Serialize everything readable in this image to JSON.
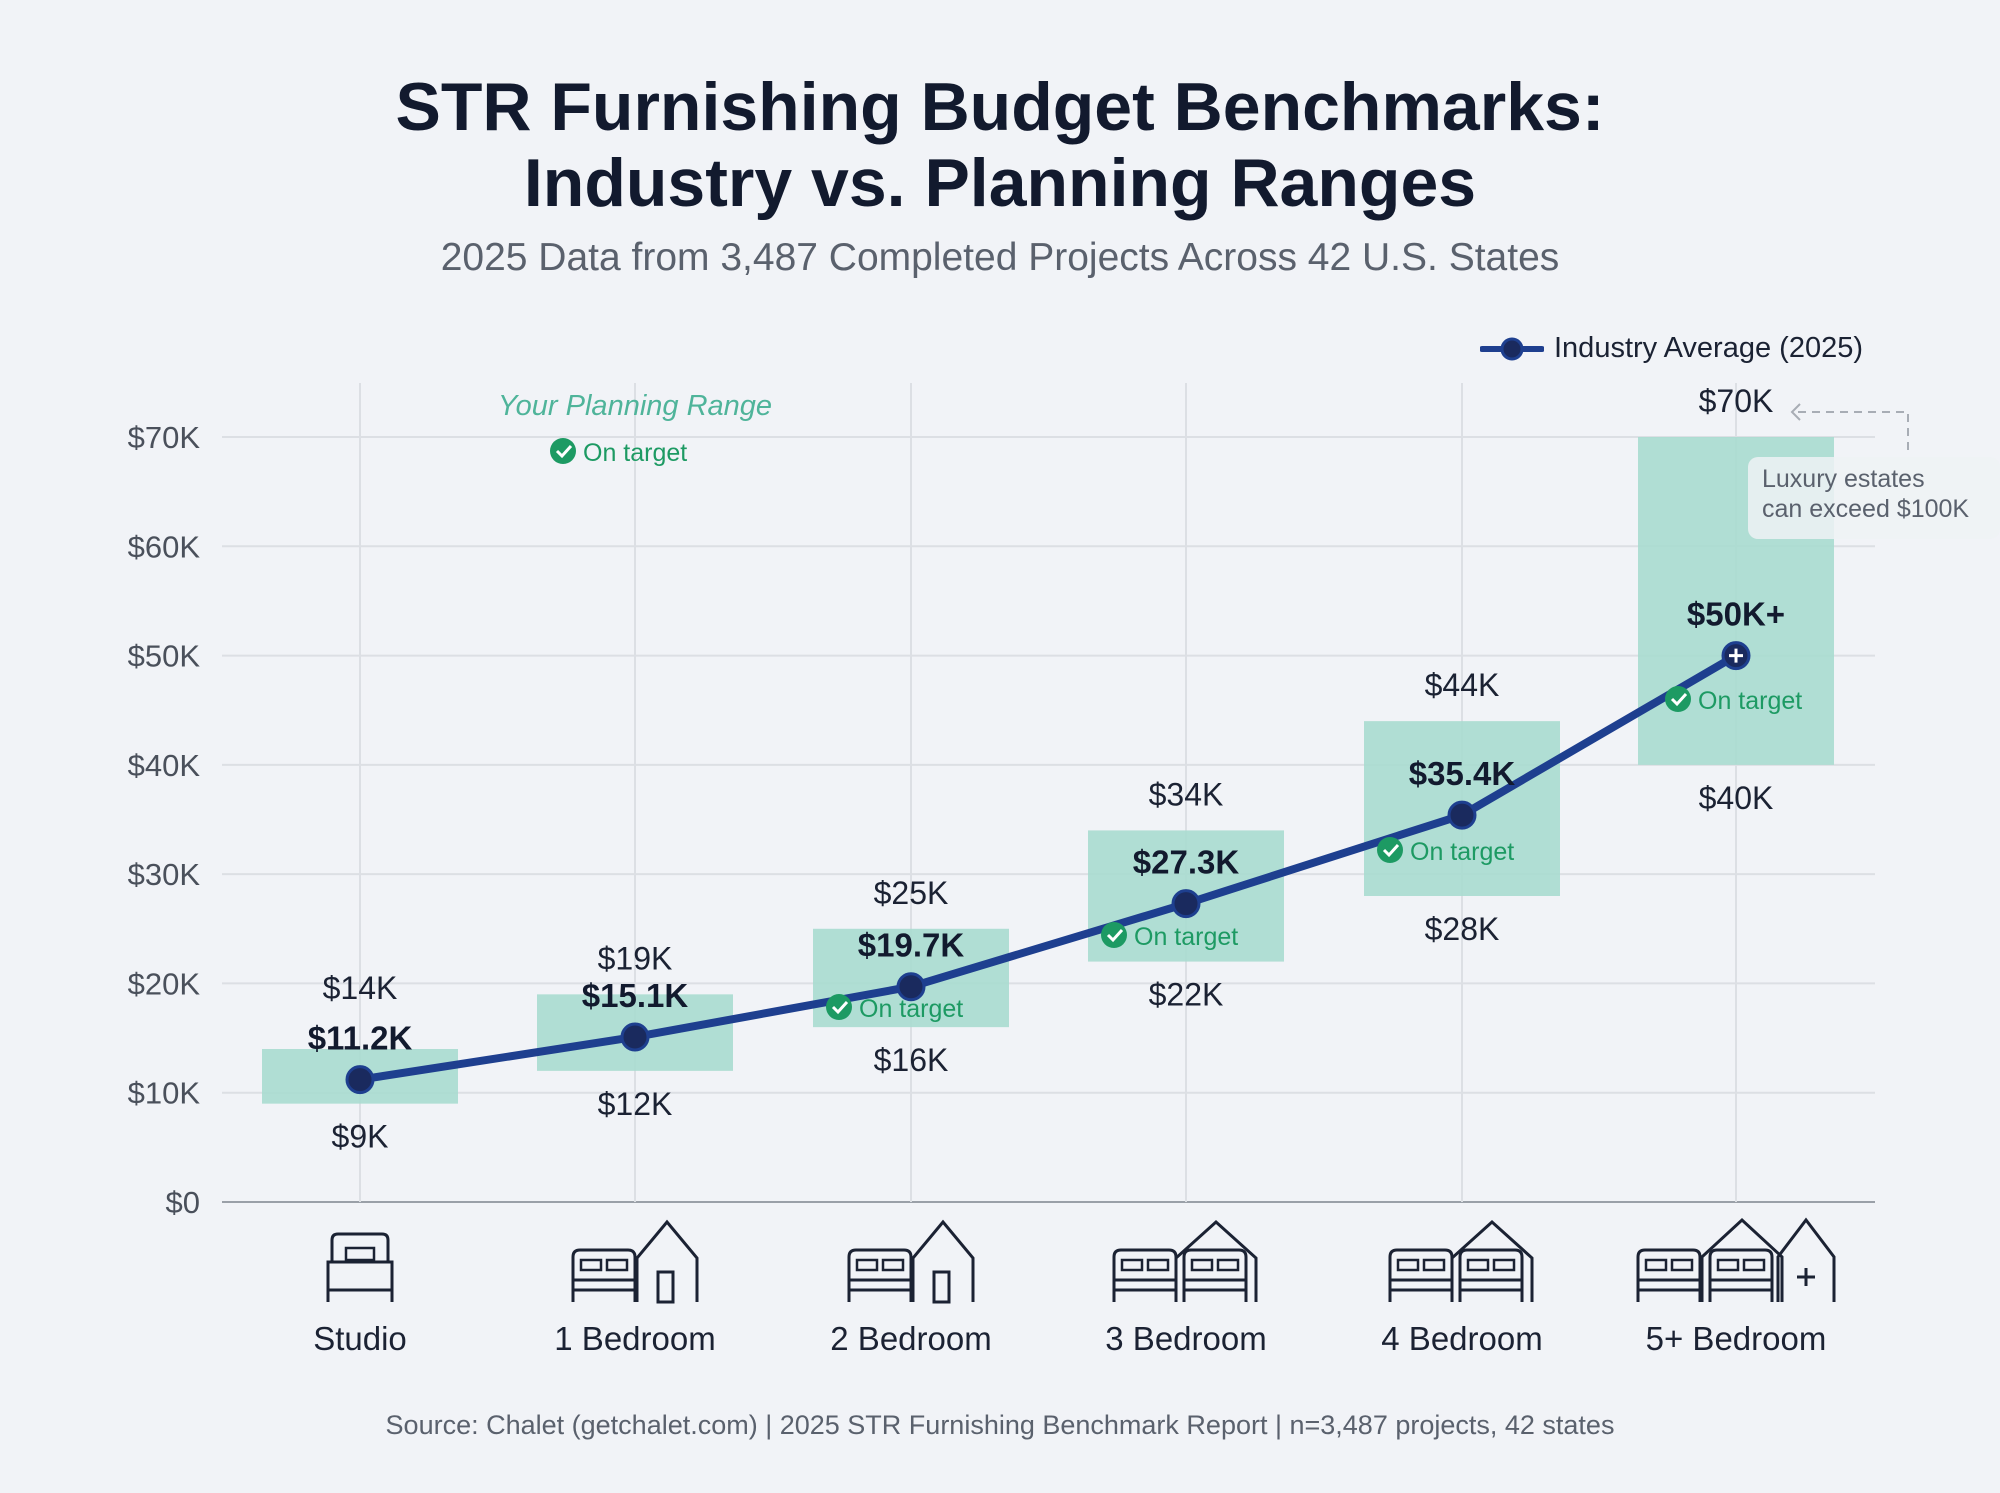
{
  "title_line1": "STR Furnishing Budget Benchmarks:",
  "title_line2": "Industry vs. Planning Ranges",
  "subtitle": "2025 Data from 3,487 Completed Projects Across 42 U.S. States",
  "footer": "Source: Chalet (getchalet.com) | 2025 STR Furnishing Benchmark Report | n=3,487 projects, 42 states",
  "chart_data": {
    "type": "line",
    "title": "STR Furnishing Budget Benchmarks: Industry vs. Planning Ranges",
    "ylim": [
      0,
      70000
    ],
    "yticks": [
      0,
      10000,
      20000,
      30000,
      40000,
      50000,
      60000,
      70000
    ],
    "ytick_labels": [
      "$0",
      "$10K",
      "$20K",
      "$30K",
      "$40K",
      "$50K",
      "$60K",
      "$70K"
    ],
    "grid": true,
    "legend_position": "top-right",
    "categories": [
      "Studio",
      "1 Bedroom",
      "2 Bedroom",
      "3 Bedroom",
      "4 Bedroom",
      "5+ Bedroom"
    ],
    "icons": [
      "single-bed-icon",
      "bed-house-icon",
      "bed-house-icon",
      "two-beds-house-icon",
      "two-beds-house-icon",
      "two-beds-houses-plus-icon"
    ],
    "series": [
      {
        "name": "Industry Average (2025)",
        "values": [
          11200,
          15100,
          19700,
          27300,
          35400,
          50000
        ],
        "labels": [
          "$11.2K",
          "$15.1K",
          "$19.7K",
          "$27.3K",
          "$35.4K",
          "$50K+"
        ],
        "color": "#1e3f8f"
      }
    ],
    "ranges": {
      "name": "Your Planning Range",
      "low": [
        9000,
        12000,
        16000,
        22000,
        28000,
        40000
      ],
      "high": [
        14000,
        19000,
        25000,
        34000,
        44000,
        70000
      ],
      "low_labels": [
        "$9K",
        "$12K",
        "$16K",
        "$22K",
        "$28K",
        "$40K"
      ],
      "high_labels": [
        "$14K",
        "$19K",
        "$25K",
        "$34K",
        "$44K",
        "$70K"
      ],
      "color": "#a9dccf"
    },
    "status": [
      null,
      "On target",
      "On target",
      "On target",
      "On target",
      "On target"
    ],
    "status_color": "#1d9a63",
    "annotation": "Luxury estates can exceed $100K",
    "annotation_lines": [
      "Luxury estates",
      "can exceed $100K"
    ]
  }
}
